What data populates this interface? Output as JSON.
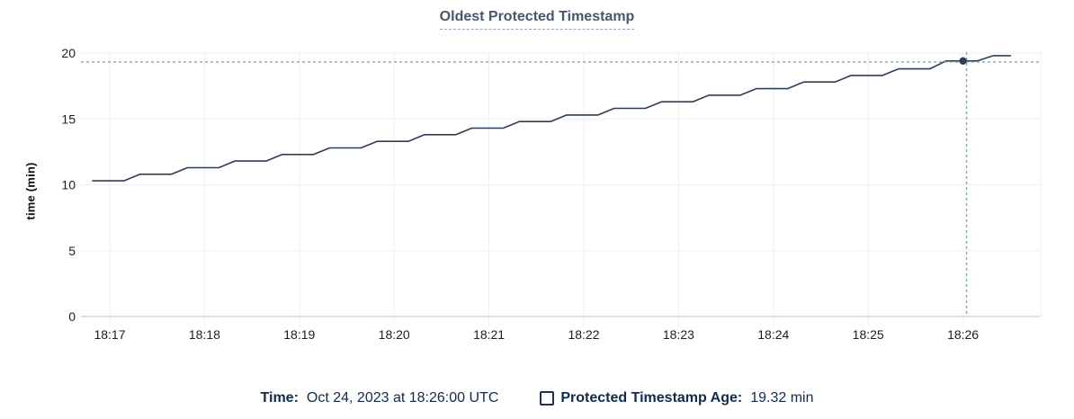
{
  "chart_data": {
    "type": "line",
    "title": "Oldest Protected Timestamp",
    "xlabel": "",
    "ylabel": "time (min)",
    "ylim": [
      0,
      20
    ],
    "y_ticks": [
      0,
      5,
      10,
      15,
      20
    ],
    "x_ticks": [
      {
        "t": 17,
        "label": "18:17"
      },
      {
        "t": 18,
        "label": "18:18"
      },
      {
        "t": 19,
        "label": "18:19"
      },
      {
        "t": 20,
        "label": "18:20"
      },
      {
        "t": 21,
        "label": "18:21"
      },
      {
        "t": 22,
        "label": "18:22"
      },
      {
        "t": 23,
        "label": "18:23"
      },
      {
        "t": 24,
        "label": "18:24"
      },
      {
        "t": 25,
        "label": "18:25"
      },
      {
        "t": 26,
        "label": "18:26"
      }
    ],
    "x_unit": "minutes after 18:00 UTC, Oct 24 2023",
    "grid": true,
    "legend_position": "bottom",
    "series": [
      {
        "name": "Protected Timestamp Age",
        "color": "#2d3f56",
        "points": [
          [
            16.82,
            10.3
          ],
          [
            17.15,
            10.3
          ],
          [
            17.32,
            10.8
          ],
          [
            17.65,
            10.8
          ],
          [
            17.82,
            11.3
          ],
          [
            18.15,
            11.3
          ],
          [
            18.32,
            11.8
          ],
          [
            18.65,
            11.8
          ],
          [
            18.82,
            12.3
          ],
          [
            19.15,
            12.3
          ],
          [
            19.32,
            12.8
          ],
          [
            19.65,
            12.8
          ],
          [
            19.82,
            13.3
          ],
          [
            20.15,
            13.3
          ],
          [
            20.32,
            13.8
          ],
          [
            20.65,
            13.8
          ],
          [
            20.82,
            14.3
          ],
          [
            21.15,
            14.3
          ],
          [
            21.32,
            14.8
          ],
          [
            21.65,
            14.8
          ],
          [
            21.82,
            15.3
          ],
          [
            22.15,
            15.3
          ],
          [
            22.32,
            15.8
          ],
          [
            22.65,
            15.8
          ],
          [
            22.82,
            16.3
          ],
          [
            23.15,
            16.3
          ],
          [
            23.32,
            16.8
          ],
          [
            23.65,
            16.8
          ],
          [
            23.82,
            17.3
          ],
          [
            24.15,
            17.3
          ],
          [
            24.32,
            17.8
          ],
          [
            24.65,
            17.8
          ],
          [
            24.82,
            18.3
          ],
          [
            25.15,
            18.3
          ],
          [
            25.32,
            18.8
          ],
          [
            25.65,
            18.8
          ],
          [
            25.82,
            19.4
          ],
          [
            26.15,
            19.4
          ],
          [
            26.32,
            19.8
          ],
          [
            26.5,
            19.8
          ]
        ]
      }
    ],
    "crosshair": {
      "t": 26,
      "value": 19.32,
      "time_label": "18:26:00",
      "color": "#8ba6ab"
    }
  },
  "footer": {
    "time_label": "Time:",
    "time_value": "Oct 24, 2023 at 18:26:00 UTC",
    "series_label": "Protected Timestamp Age:",
    "series_value": "19.32 min"
  },
  "colors": {
    "title": "#47566e",
    "title_underline": "#93a3bc",
    "line": "#2d3f56",
    "crosshair": "#8ba6ab",
    "gridline": "#efefef",
    "axis_line": "#e0e0e0",
    "tick_text": "#1d1d1d",
    "footer_text": "#112a4c"
  }
}
